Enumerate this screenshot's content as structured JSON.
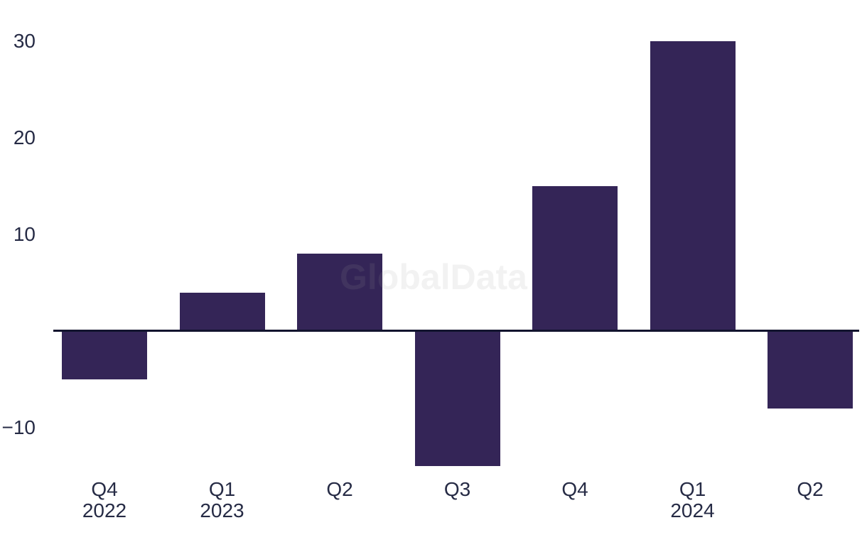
{
  "watermark": {
    "text": "GlobalData"
  },
  "colors": {
    "background": "#ffffff",
    "bar": "#342557",
    "axis_line": "#12142e",
    "label_text": "#262b45",
    "watermark_text": "rgba(155,155,155,0.13)"
  },
  "chart_data": {
    "type": "bar",
    "categories": [
      "Q4 2022",
      "Q1 2023",
      "Q2 2023",
      "Q3 2023",
      "Q4 2023",
      "Q1 2024",
      "Q2 2024"
    ],
    "values": [
      -5,
      4,
      8,
      -14,
      15,
      30,
      -8
    ],
    "x_tick_labels": [
      [
        "Q4",
        "2022"
      ],
      [
        "Q1",
        "2023"
      ],
      [
        "Q2"
      ],
      [
        "Q3"
      ],
      [
        "Q4"
      ],
      [
        "Q1",
        "2024"
      ],
      [
        "Q2"
      ]
    ],
    "y_ticks": [
      30,
      20,
      10,
      -10
    ],
    "y_tick_labels": [
      "30",
      "20",
      "10",
      "−10"
    ],
    "ylim": [
      -15.5,
      31.5
    ],
    "grid": false,
    "legend": null,
    "bar_color": "#342557",
    "watermark": "GlobalData"
  }
}
